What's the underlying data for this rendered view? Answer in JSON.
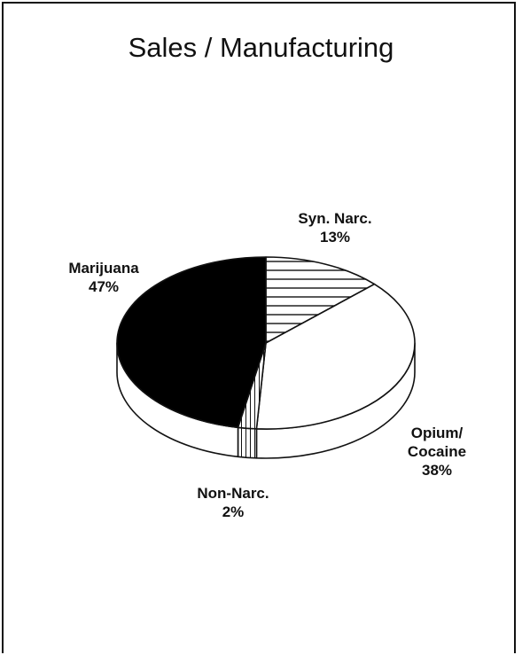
{
  "chart_data": {
    "type": "pie",
    "title": "Sales / Manufacturing",
    "slices": [
      {
        "label_lines": [
          "Syn. Narc."
        ],
        "percent_text": "13%",
        "value": 13,
        "fill": "hatch"
      },
      {
        "label_lines": [
          "Opium/",
          "Cocaine"
        ],
        "percent_text": "38%",
        "value": 38,
        "fill": "#ffffff"
      },
      {
        "label_lines": [
          "Non-Narc."
        ],
        "percent_text": "2%",
        "value": 2,
        "fill": "vhatch"
      },
      {
        "label_lines": [
          "Marijuana"
        ],
        "percent_text": "47%",
        "value": 47,
        "fill": "#000000"
      }
    ]
  }
}
